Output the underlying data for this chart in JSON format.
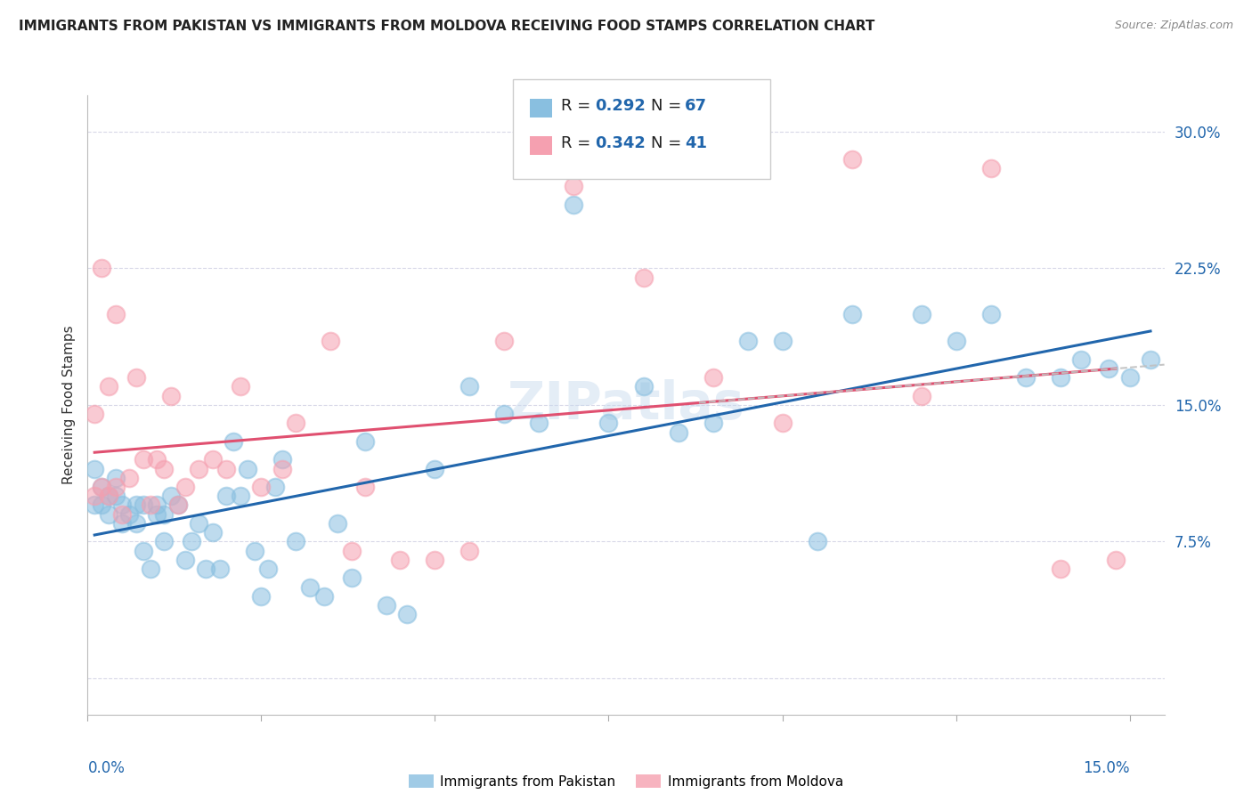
{
  "title": "IMMIGRANTS FROM PAKISTAN VS IMMIGRANTS FROM MOLDOVA RECEIVING FOOD STAMPS CORRELATION CHART",
  "source": "Source: ZipAtlas.com",
  "ylabel": "Receiving Food Stamps",
  "xlim": [
    0.0,
    0.155
  ],
  "ylim": [
    -0.02,
    0.32
  ],
  "yticks": [
    0.0,
    0.075,
    0.15,
    0.225,
    0.3
  ],
  "ytick_labels": [
    "",
    "7.5%",
    "15.0%",
    "22.5%",
    "30.0%"
  ],
  "pakistan_color": "#89bfe0",
  "moldova_color": "#f5a0b0",
  "pakistan_line_color": "#2166ac",
  "moldova_line_color": "#e05070",
  "trend_line_color": "#c0c0c0",
  "R_pakistan": 0.292,
  "N_pakistan": 67,
  "R_moldova": 0.342,
  "N_moldova": 41,
  "watermark": "ZIPatlas",
  "background_color": "#ffffff",
  "grid_color": "#d8d8e8",
  "pakistan_x": [
    0.001,
    0.001,
    0.002,
    0.002,
    0.003,
    0.003,
    0.004,
    0.004,
    0.005,
    0.005,
    0.006,
    0.007,
    0.007,
    0.008,
    0.008,
    0.009,
    0.01,
    0.01,
    0.011,
    0.011,
    0.012,
    0.013,
    0.014,
    0.015,
    0.016,
    0.017,
    0.018,
    0.019,
    0.02,
    0.021,
    0.022,
    0.023,
    0.024,
    0.025,
    0.026,
    0.027,
    0.028,
    0.03,
    0.032,
    0.034,
    0.036,
    0.038,
    0.04,
    0.043,
    0.046,
    0.05,
    0.055,
    0.06,
    0.065,
    0.07,
    0.075,
    0.08,
    0.085,
    0.09,
    0.095,
    0.1,
    0.105,
    0.11,
    0.12,
    0.125,
    0.13,
    0.135,
    0.14,
    0.143,
    0.147,
    0.15,
    0.153
  ],
  "pakistan_y": [
    0.095,
    0.115,
    0.105,
    0.095,
    0.1,
    0.09,
    0.11,
    0.1,
    0.085,
    0.095,
    0.09,
    0.085,
    0.095,
    0.07,
    0.095,
    0.06,
    0.09,
    0.095,
    0.075,
    0.09,
    0.1,
    0.095,
    0.065,
    0.075,
    0.085,
    0.06,
    0.08,
    0.06,
    0.1,
    0.13,
    0.1,
    0.115,
    0.07,
    0.045,
    0.06,
    0.105,
    0.12,
    0.075,
    0.05,
    0.045,
    0.085,
    0.055,
    0.13,
    0.04,
    0.035,
    0.115,
    0.16,
    0.145,
    0.14,
    0.26,
    0.14,
    0.16,
    0.135,
    0.14,
    0.185,
    0.185,
    0.075,
    0.2,
    0.2,
    0.185,
    0.2,
    0.165,
    0.165,
    0.175,
    0.17,
    0.165,
    0.175
  ],
  "moldova_x": [
    0.001,
    0.001,
    0.002,
    0.002,
    0.003,
    0.003,
    0.004,
    0.004,
    0.005,
    0.006,
    0.007,
    0.008,
    0.009,
    0.01,
    0.011,
    0.012,
    0.013,
    0.014,
    0.016,
    0.018,
    0.02,
    0.022,
    0.025,
    0.028,
    0.03,
    0.035,
    0.038,
    0.04,
    0.045,
    0.05,
    0.055,
    0.06,
    0.07,
    0.08,
    0.09,
    0.1,
    0.11,
    0.12,
    0.13,
    0.14,
    0.148
  ],
  "moldova_y": [
    0.1,
    0.145,
    0.105,
    0.225,
    0.1,
    0.16,
    0.105,
    0.2,
    0.09,
    0.11,
    0.165,
    0.12,
    0.095,
    0.12,
    0.115,
    0.155,
    0.095,
    0.105,
    0.115,
    0.12,
    0.115,
    0.16,
    0.105,
    0.115,
    0.14,
    0.185,
    0.07,
    0.105,
    0.065,
    0.065,
    0.07,
    0.185,
    0.27,
    0.22,
    0.165,
    0.14,
    0.285,
    0.155,
    0.28,
    0.06,
    0.065
  ],
  "legend_R_label": "R = ",
  "legend_N_label": "N = ",
  "pakistan_legend_label": "Immigrants from Pakistan",
  "moldova_legend_label": "Immigrants from Moldova"
}
